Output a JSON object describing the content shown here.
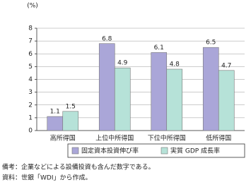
{
  "chart_data": {
    "type": "bar",
    "y_label": "(%)",
    "categories": [
      "高所得国",
      "上位中所得国",
      "下位中所得国",
      "低所得国"
    ],
    "series": [
      {
        "name": "固定資本投資伸び率",
        "color": "#aaa6d8",
        "values": [
          1.1,
          6.8,
          6.1,
          6.5
        ]
      },
      {
        "name": "実質 GDP 成長率",
        "color": "#b6e2d8",
        "values": [
          1.5,
          4.9,
          4.8,
          4.7
        ]
      }
    ],
    "ylim": [
      0,
      8
    ],
    "yticks": [
      0,
      1,
      2,
      3,
      4,
      5,
      6,
      7,
      8
    ],
    "grid": true,
    "legend": "bottom",
    "notes": [
      "備考：企業などによる設備投資も含んだ数字である。",
      "資料：世銀「WDI」から作成。"
    ]
  }
}
